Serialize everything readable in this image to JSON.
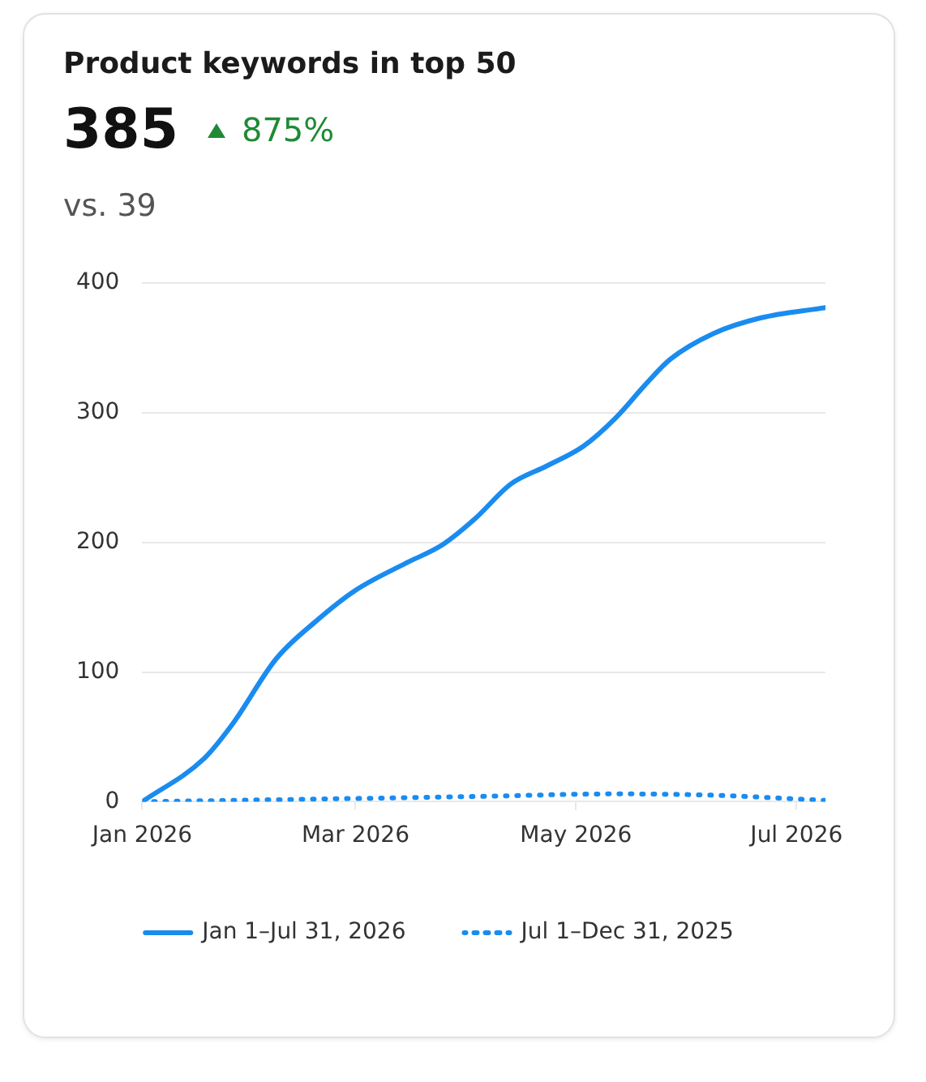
{
  "chart_data": {
    "type": "line",
    "title": "Product keywords in top 50",
    "annotations": [
      "385",
      "875%",
      "vs. 39"
    ],
    "series": [
      {
        "name": "Jan 1–Jul 31, 2026",
        "color": "#1a8cf0",
        "line_style": "solid",
        "x": [
          "2026-01-01",
          "2026-01-18",
          "2026-01-26",
          "2026-02-07",
          "2026-02-18",
          "2026-03-01",
          "2026-03-15",
          "2026-03-25",
          "2026-04-03",
          "2026-04-13",
          "2026-04-23",
          "2026-05-03",
          "2026-05-12",
          "2026-05-20",
          "2026-05-27",
          "2026-06-08",
          "2026-06-21",
          "2026-07-09"
        ],
        "values": [
          0,
          33,
          60,
          110,
          139,
          163,
          184,
          198,
          218,
          245,
          259,
          274,
          296,
          321,
          341,
          361,
          373,
          381
        ]
      },
      {
        "name": "Jul 1–Dec 31, 2025",
        "color": "#1a8cf0",
        "line_style": "dotted",
        "x": [
          "2026-01-01",
          "2026-02-18",
          "2026-04-03",
          "2026-05-12",
          "2026-06-08",
          "2026-07-09"
        ],
        "values": [
          0,
          2,
          4,
          6,
          5,
          1
        ]
      }
    ],
    "xlim": [
      "2026-01-01",
      "2026-07-09"
    ],
    "xticks": [
      {
        "value": "2026-01-01",
        "label": "Jan 2026"
      },
      {
        "value": "2026-03-01",
        "label": "Mar 2026"
      },
      {
        "value": "2026-05-01",
        "label": "May 2026"
      },
      {
        "value": "2026-07-01",
        "label": "Jul 2026"
      }
    ],
    "ylim": [
      0,
      400
    ],
    "yticks": [
      0,
      100,
      200,
      300,
      400
    ],
    "grid": "y",
    "legend": "bottom",
    "marker": "none"
  }
}
